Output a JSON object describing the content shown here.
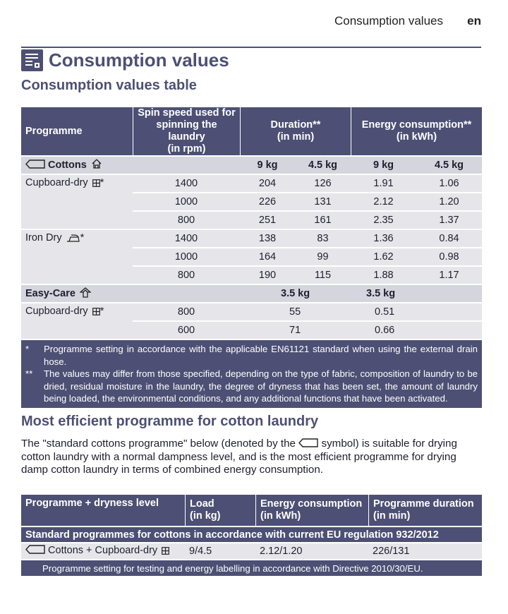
{
  "header": {
    "section_title": "Consumption values",
    "language": "en"
  },
  "page_title": "Consumption values",
  "table1": {
    "title": "Consumption values table",
    "headers": {
      "programme": "Programme",
      "spin_speed": [
        "Spin speed used for",
        "spinning the laundry",
        "(in rpm)"
      ],
      "duration": [
        "Duration**",
        "(in min)"
      ],
      "energy": [
        "Energy consumption**",
        "(in kWh)"
      ]
    },
    "cottons": {
      "name": "Cottons",
      "load_a": "9 kg",
      "load_b": "4.5 kg",
      "load_c": "9 kg",
      "load_d": "4.5 kg",
      "groups": [
        {
          "label": "Cupboard-dry",
          "suffix": "*",
          "rows": [
            {
              "rpm": "1400",
              "dur_a": "204",
              "dur_b": "126",
              "en_a": "1.91",
              "en_b": "1.06"
            },
            {
              "rpm": "1000",
              "dur_a": "226",
              "dur_b": "131",
              "en_a": "2.12",
              "en_b": "1.20"
            },
            {
              "rpm": "800",
              "dur_a": "251",
              "dur_b": "161",
              "en_a": "2.35",
              "en_b": "1.37"
            }
          ]
        },
        {
          "label": "Iron Dry",
          "suffix": "*",
          "rows": [
            {
              "rpm": "1400",
              "dur_a": "138",
              "dur_b": "83",
              "en_a": "1.36",
              "en_b": "0.84"
            },
            {
              "rpm": "1000",
              "dur_a": "164",
              "dur_b": "99",
              "en_a": "1.62",
              "en_b": "0.98"
            },
            {
              "rpm": "800",
              "dur_a": "190",
              "dur_b": "115",
              "en_a": "1.88",
              "en_b": "1.17"
            }
          ]
        }
      ]
    },
    "easycare": {
      "name": "Easy-Care",
      "load_dur": "3.5 kg",
      "load_en": "3.5 kg",
      "group": {
        "label": "Cupboard-dry",
        "suffix": "*",
        "rows": [
          {
            "rpm": "800",
            "dur": "55",
            "en": "0.51"
          },
          {
            "rpm": "600",
            "dur": "71",
            "en": "0.66"
          }
        ]
      }
    },
    "notes": [
      {
        "marker": "*",
        "text": "Programme setting in accordance with the applicable EN61121 standard when using the external drain hose."
      },
      {
        "marker": "**",
        "text": "The values may differ from those specified, depending on the type of fabric, composition of laundry to be dried, residual moisture in the laundry, the degree of dryness that has been set, the amount of laundry being loaded, the environmental conditions, and any additional functions that have been activated."
      }
    ]
  },
  "efficient": {
    "title": "Most efficient programme for cotton laundry",
    "para_before": "The \"standard cottons programme\" below (denoted by the",
    "para_after": "symbol) is suitable for drying cotton laundry with a normal dampness level, and is the most efficient programme for drying damp cotton laundry in terms of combined energy consumption."
  },
  "table2": {
    "caption": "Standard programmes for cottons in accordance with current EU regulation 932/2012",
    "headers": {
      "programme": "Programme + dryness level",
      "load": [
        "Load",
        "(in kg)"
      ],
      "energy": [
        "Energy consumption",
        "(in kWh)"
      ],
      "duration": [
        "Programme duration",
        "(in min)"
      ]
    },
    "row": {
      "programme": "Cottons + Cupboard-dry",
      "load": "9/4.5",
      "energy": "2.12/1.20",
      "duration": "226/131"
    },
    "footnote": "Programme setting for testing and energy labelling in accordance with Directive 2010/30/EU."
  }
}
